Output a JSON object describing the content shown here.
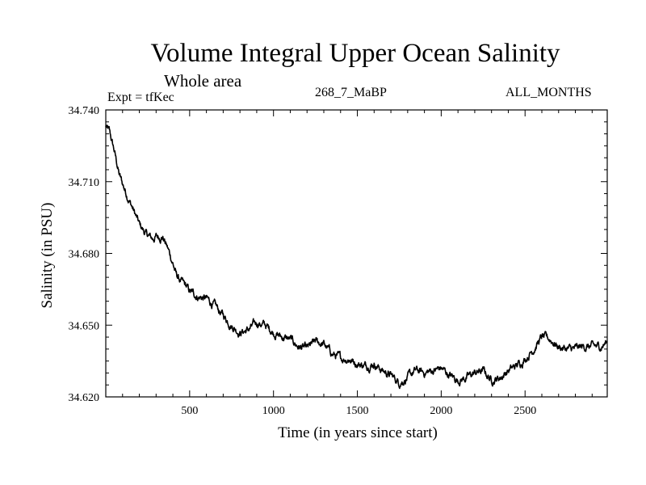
{
  "header": {
    "title": "Volume Integral Upper Ocean Salinity",
    "subtitle": "Whole area",
    "expt": "Expt = tfKec",
    "center_label": "268_7_MaBP",
    "right_label": "ALL_MONTHS"
  },
  "chart_data": {
    "type": "line",
    "xlabel": "Time (in years since start)",
    "ylabel": "Salinity (in PSU)",
    "xlim": [
      0,
      2990
    ],
    "ylim": [
      34.62,
      34.74
    ],
    "x_ticks": [
      500,
      1000,
      1500,
      2000,
      2500
    ],
    "x_tick_labels": [
      "500",
      "1000",
      "1500",
      "2000",
      "2500"
    ],
    "y_ticks": [
      34.62,
      34.65,
      34.68,
      34.71,
      34.74
    ],
    "y_tick_labels": [
      "34.620",
      "34.650",
      "34.680",
      "34.710",
      "34.740"
    ],
    "grid": false,
    "series": [
      {
        "color": "#000000",
        "x": [
          0,
          20,
          50,
          80,
          100,
          130,
          160,
          200,
          240,
          280,
          300,
          340,
          370,
          400,
          420,
          450,
          480,
          500,
          550,
          600,
          650,
          700,
          750,
          800,
          850,
          900,
          950,
          1000,
          1050,
          1100,
          1150,
          1200,
          1250,
          1300,
          1350,
          1400,
          1450,
          1500,
          1550,
          1600,
          1650,
          1700,
          1750,
          1800,
          1850,
          1900,
          1950,
          2000,
          2050,
          2100,
          2150,
          2200,
          2250,
          2300,
          2350,
          2400,
          2450,
          2500,
          2550,
          2600,
          2650,
          2700,
          2750,
          2800,
          2850,
          2900,
          2950,
          2990
        ],
        "values": [
          34.733,
          34.731,
          34.723,
          34.713,
          34.709,
          34.704,
          34.699,
          34.692,
          34.688,
          34.686,
          34.687,
          34.687,
          34.682,
          34.676,
          34.671,
          34.668,
          34.666,
          34.664,
          34.662,
          34.661,
          34.658,
          34.654,
          34.65,
          34.647,
          34.648,
          34.651,
          34.65,
          34.647,
          34.645,
          34.644,
          34.641,
          34.64,
          34.643,
          34.642,
          34.638,
          34.636,
          34.636,
          34.634,
          34.633,
          34.634,
          34.631,
          34.629,
          34.626,
          34.628,
          34.631,
          34.63,
          34.631,
          34.632,
          34.629,
          34.627,
          34.628,
          34.63,
          34.631,
          34.627,
          34.628,
          34.631,
          34.633,
          34.636,
          34.64,
          34.645,
          34.644,
          34.641,
          34.64,
          34.64,
          34.641,
          34.641,
          34.641,
          34.643
        ]
      }
    ]
  }
}
